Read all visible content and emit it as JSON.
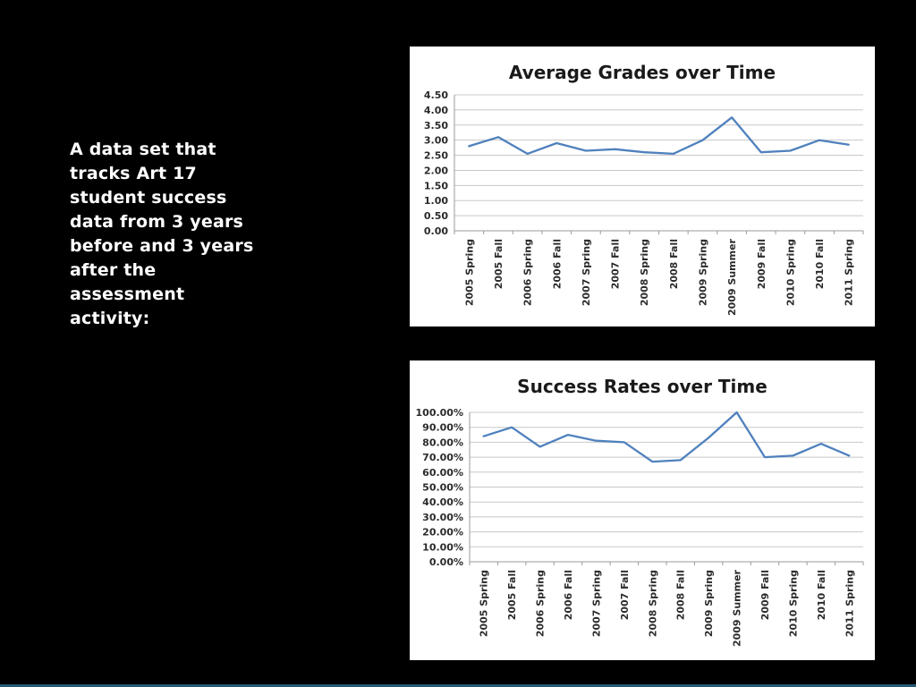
{
  "slide": {
    "background_color": "#000000",
    "accent_color": "#235a74",
    "caption": "A data set that tracks Art 17 student success data from 3 years before and 3 years after the assessment activity:"
  },
  "chart_data": [
    {
      "type": "line",
      "title": "Average Grades over Time",
      "categories": [
        "2005 Spring",
        "2005 Fall",
        "2006 Spring",
        "2006 Fall",
        "2007 Spring",
        "2007 Fall",
        "2008 Spring",
        "2008 Fall",
        "2009 Spring",
        "2009 Summer",
        "2009 Fall",
        "2010 Spring",
        "2010 Fall",
        "2011 Spring"
      ],
      "values": [
        2.8,
        3.1,
        2.55,
        2.9,
        2.65,
        2.7,
        2.6,
        2.55,
        3.0,
        3.75,
        2.6,
        2.65,
        3.0,
        2.85
      ],
      "xlabel": "",
      "ylabel": "",
      "ylim": [
        0,
        4.5
      ],
      "ytick_step": 0.5,
      "ytick_labels": [
        "0.00",
        "0.50",
        "1.00",
        "1.50",
        "2.00",
        "2.50",
        "3.00",
        "3.50",
        "4.00",
        "4.50"
      ],
      "ytick_format": "0.00",
      "grid": true,
      "legend": "none",
      "line_color": "#4f81bd",
      "title_color": "#1a1a1a",
      "label_color": "#2b2b2b",
      "grid_color": "#c8c8c8",
      "axis_color": "#9a9a9a"
    },
    {
      "type": "line",
      "title": "Success Rates over Time",
      "categories": [
        "2005 Spring",
        "2005 Fall",
        "2006 Spring",
        "2006 Fall",
        "2007 Spring",
        "2007 Fall",
        "2008 Spring",
        "2008 Fall",
        "2009 Spring",
        "2009 Summer",
        "2009 Fall",
        "2010 Spring",
        "2010 Fall",
        "2011 Spring"
      ],
      "values": [
        84,
        90,
        77,
        85,
        81,
        80,
        67,
        68,
        83,
        100,
        70,
        71,
        79,
        71
      ],
      "xlabel": "",
      "ylabel": "",
      "ylim": [
        0,
        100
      ],
      "ytick_step": 10,
      "ytick_labels": [
        "0.00%",
        "10.00%",
        "20.00%",
        "30.00%",
        "40.00%",
        "50.00%",
        "60.00%",
        "70.00%",
        "80.00%",
        "90.00%",
        "100.00%"
      ],
      "ytick_format": "0.00%",
      "grid": true,
      "legend": "none",
      "line_color": "#4f81bd",
      "title_color": "#1a1a1a",
      "label_color": "#2b2b2b",
      "grid_color": "#c8c8c8",
      "axis_color": "#9a9a9a"
    }
  ]
}
